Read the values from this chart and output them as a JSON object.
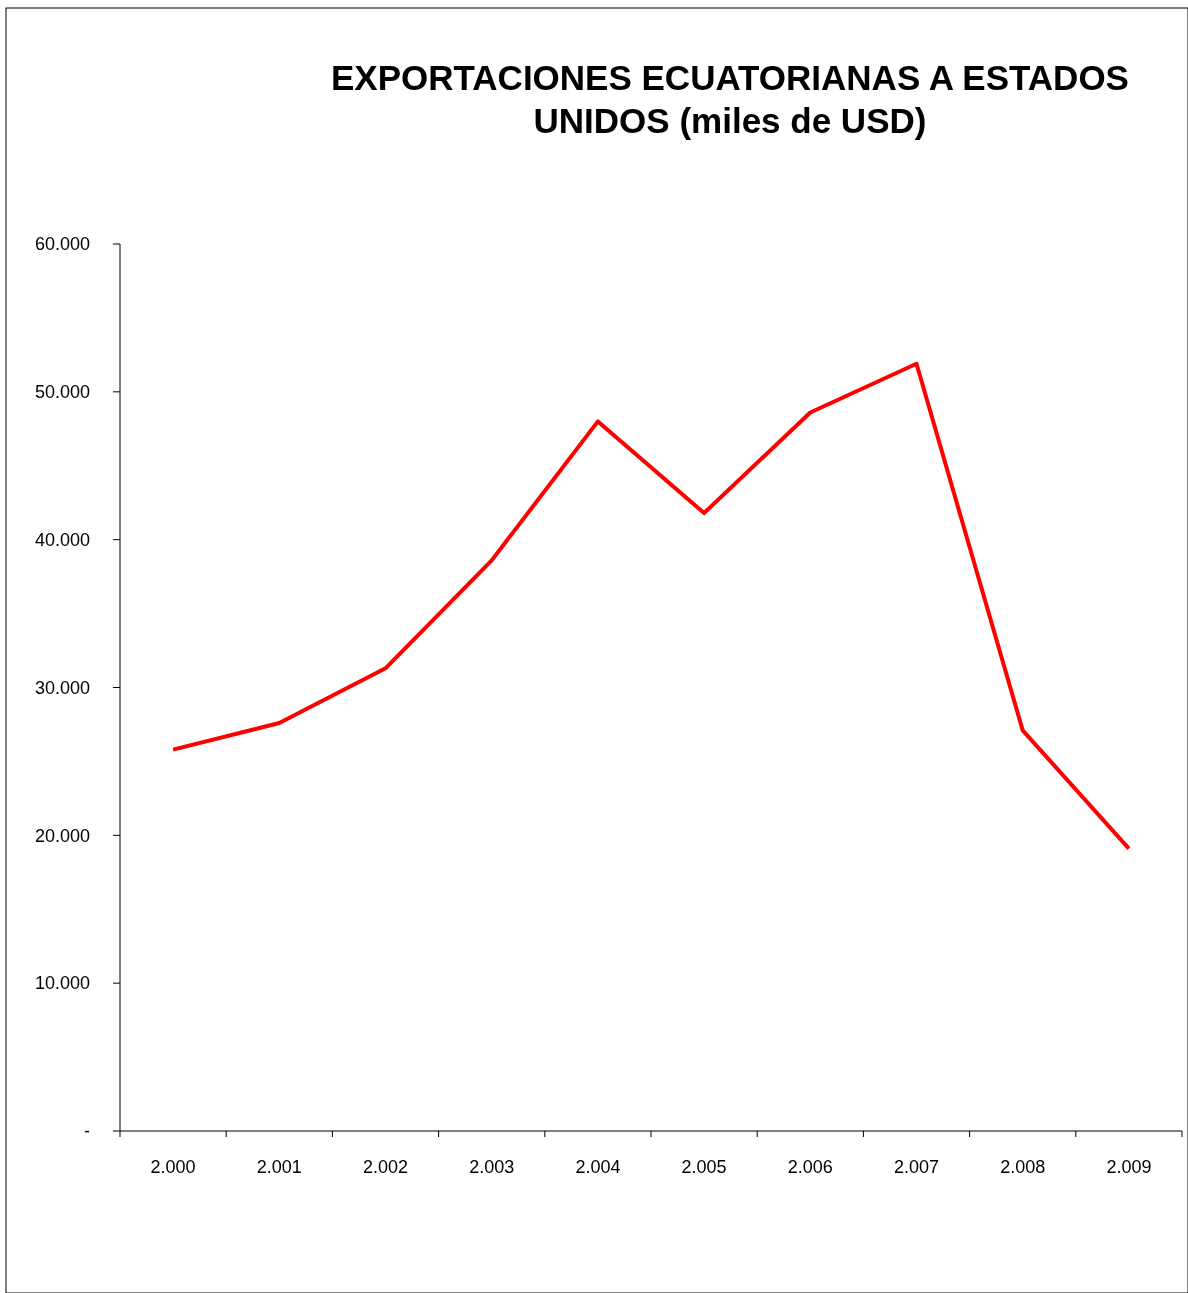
{
  "chart_data": {
    "type": "line",
    "title": "EXPORTACIONES ECUATORIANAS A ESTADOS UNIDOS (miles de USD)",
    "categories": [
      "2.000",
      "2.001",
      "2.002",
      "2.003",
      "2.004",
      "2.005",
      "2.006",
      "2.007",
      "2.008",
      "2.009"
    ],
    "series": [
      {
        "color": "#ff0000",
        "values": [
          25800,
          27600,
          31300,
          38600,
          48000,
          41800,
          48600,
          51900,
          27100,
          19100
        ]
      }
    ],
    "ylim": [
      0,
      60000
    ],
    "yticks": [
      {
        "value": 0,
        "label": "-"
      },
      {
        "value": 10000,
        "label": "10.000"
      },
      {
        "value": 20000,
        "label": "20.000"
      },
      {
        "value": 30000,
        "label": "30.000"
      },
      {
        "value": 40000,
        "label": "40.000"
      },
      {
        "value": 50000,
        "label": "50.000"
      },
      {
        "value": 60000,
        "label": "60.000"
      }
    ],
    "grid": false,
    "marker": "none",
    "line_style": "solid"
  }
}
